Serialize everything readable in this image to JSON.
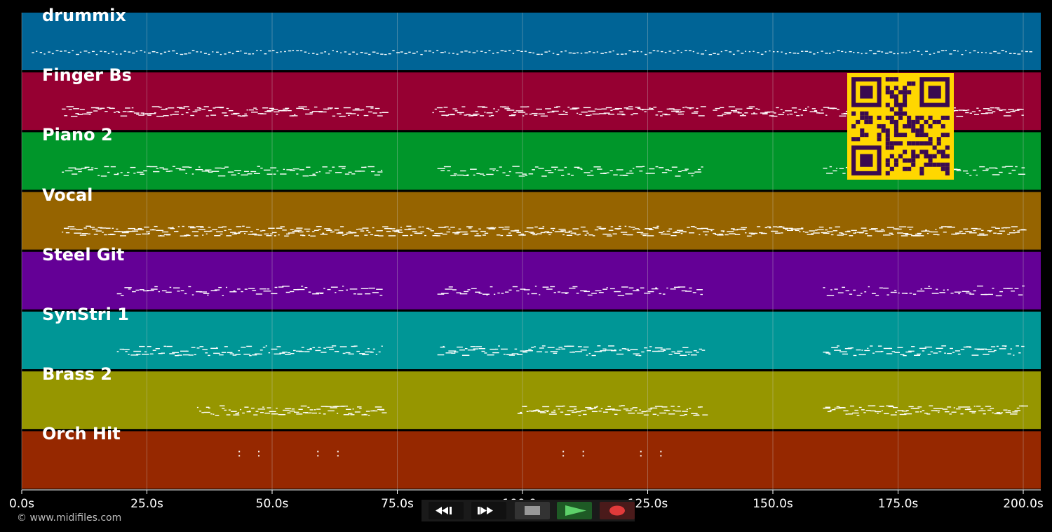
{
  "tracks": [
    {
      "name": "drummix",
      "color": "#006496"
    },
    {
      "name": "Finger Bs",
      "color": "#960032"
    },
    {
      "name": "Piano 2",
      "color": "#00962a"
    },
    {
      "name": "Vocal",
      "color": "#966400"
    },
    {
      "name": "Steel Git",
      "color": "#640096"
    },
    {
      "name": "SynStri 1",
      "color": "#009696"
    },
    {
      "name": "Brass 2",
      "color": "#969600"
    },
    {
      "name": "Orch Hit",
      "color": "#962800"
    }
  ],
  "timeline": {
    "duration_s": 203.5,
    "ticks": [
      "0.0s",
      "25.0s",
      "50.0s",
      "75.0s",
      "100.0s",
      "125.0s",
      "150.0s",
      "175.0s",
      "200.0s"
    ]
  },
  "copyright": "© www.midifiles.com",
  "transport": {
    "buttons": [
      "rewind",
      "fast-forward",
      "stop",
      "play",
      "record"
    ]
  },
  "colors": {
    "background": "#000000",
    "grid": "#cccccc",
    "note": "#ffffff",
    "qr_bg": "#ffd700",
    "qr_fg": "#3a0a50",
    "play": "#5dd16a",
    "record": "#e03a3a"
  }
}
